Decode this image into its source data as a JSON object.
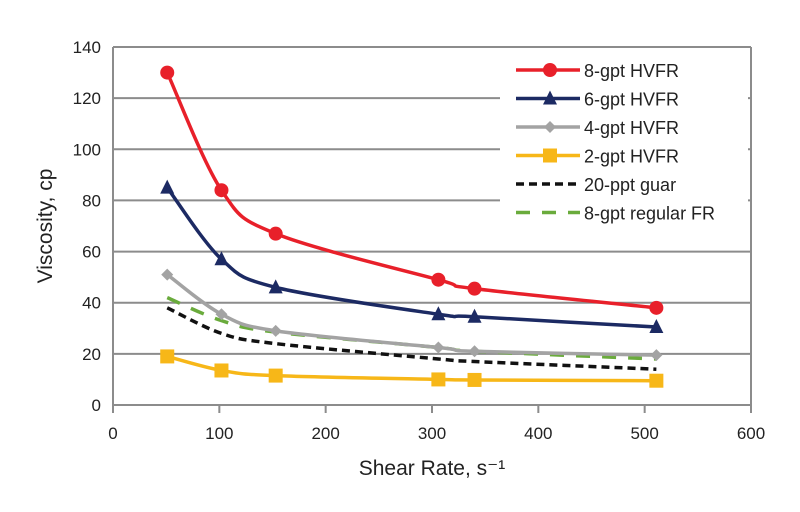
{
  "chart_data": {
    "type": "line",
    "title": "",
    "xlabel": "Shear Rate, s⁻¹",
    "ylabel": "Viscosity, cp",
    "xlim": [
      0,
      600
    ],
    "ylim": [
      0,
      140
    ],
    "xticks": [
      0,
      100,
      200,
      300,
      400,
      500,
      600
    ],
    "yticks": [
      0,
      20,
      40,
      60,
      80,
      100,
      120,
      140
    ],
    "grid": "horizontal",
    "legend_position": "top-right",
    "series": [
      {
        "name": "8-gpt HVFR",
        "color": "#e8202a",
        "marker": "circle",
        "dash": "solid",
        "x": [
          51,
          102,
          153,
          306,
          340,
          511
        ],
        "y": [
          130,
          84,
          67,
          49,
          45.5,
          38
        ]
      },
      {
        "name": "6-gpt HVFR",
        "color": "#1c2a63",
        "marker": "triangle",
        "dash": "solid",
        "x": [
          51,
          102,
          153,
          306,
          340,
          511
        ],
        "y": [
          85,
          57,
          46,
          35.5,
          34.5,
          30.5
        ]
      },
      {
        "name": "4-gpt HVFR",
        "color": "#a3a3a3",
        "marker": "diamond",
        "dash": "solid",
        "x": [
          51,
          102,
          153,
          306,
          340,
          511
        ],
        "y": [
          51,
          35.5,
          29,
          22.5,
          21,
          19.5
        ]
      },
      {
        "name": "2-gpt HVFR",
        "color": "#f7b718",
        "marker": "square",
        "dash": "solid",
        "x": [
          51,
          102,
          153,
          306,
          340,
          511
        ],
        "y": [
          19,
          13.5,
          11.5,
          10,
          9.8,
          9.5
        ]
      },
      {
        "name": "20-ppt guar",
        "color": "#111111",
        "marker": "none",
        "dash": "short",
        "x": [
          51,
          102,
          153,
          306,
          340,
          511
        ],
        "y": [
          38,
          28,
          24,
          18,
          17,
          14
        ]
      },
      {
        "name": "8-gpt regular FR",
        "color": "#6aab3c",
        "marker": "none",
        "dash": "long",
        "x": [
          51,
          102,
          153,
          306,
          340,
          511
        ],
        "y": [
          42,
          33,
          28.5,
          22.5,
          21,
          18
        ]
      }
    ]
  }
}
